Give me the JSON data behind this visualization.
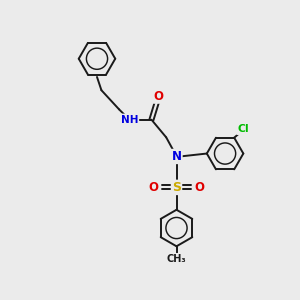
{
  "background_color": "#ebebeb",
  "bond_color": "#1a1a1a",
  "atom_colors": {
    "N": "#0000e0",
    "O": "#e00000",
    "S": "#ccaa00",
    "Cl": "#00bb00",
    "H": "#555555",
    "C": "#1a1a1a"
  },
  "lw": 1.4
}
